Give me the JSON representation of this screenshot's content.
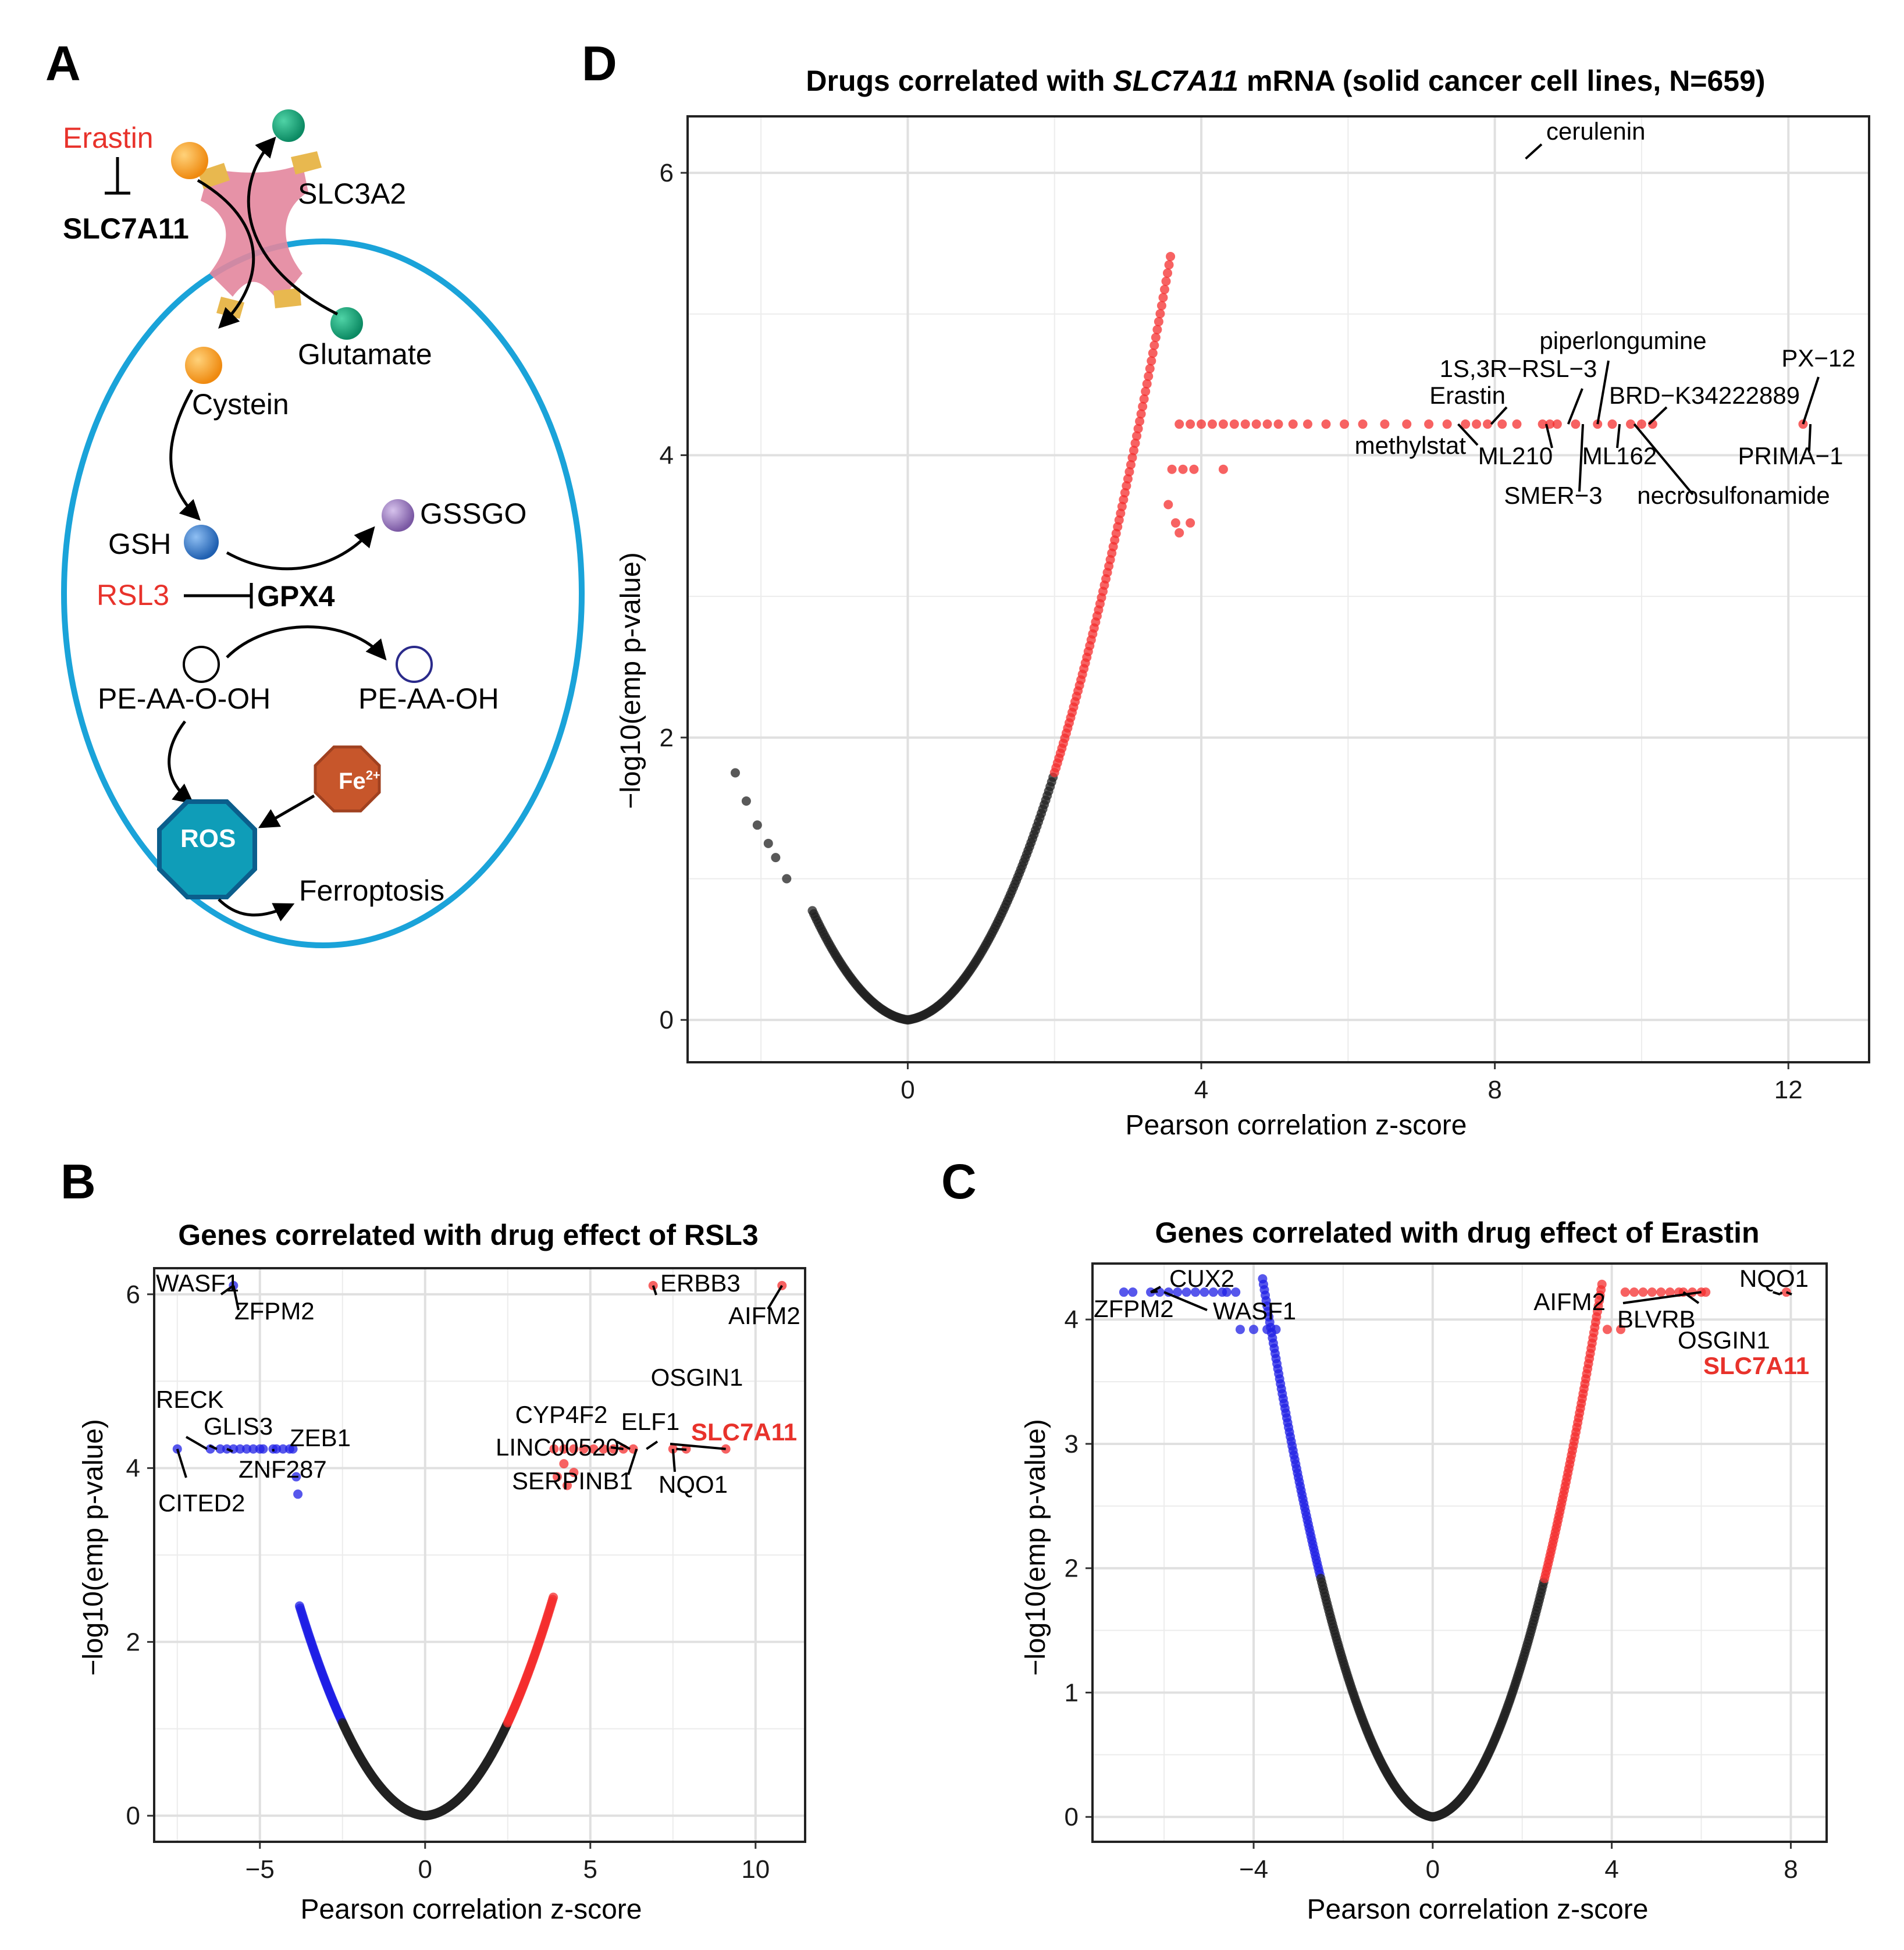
{
  "colors": {
    "up": "#f42d2d",
    "down": "#1f1fe6",
    "ns": "#222222",
    "cell": "#1aa3d9",
    "inhibitor": "#e8322b",
    "cystine": "#f39a1a",
    "glutamate": "#14a37a",
    "gsh": "#2f74c7",
    "gssg": "#8a6bb0",
    "fe": "#c7562b",
    "ros": "#0f8fa8"
  },
  "panels": {
    "A": {
      "letter": "A",
      "labels": {
        "erastin": "Erastin",
        "slc7a11": "SLC7A11",
        "slc3a2": "SLC3A2",
        "glutamate": "Glutamate",
        "cystein": "Cystein",
        "gsh": "GSH",
        "gssgo": "GSSGO",
        "rsl3": "RSL3",
        "gpx4": "GPX4",
        "pe_aa_o_oh": "PE-AA-O-OH",
        "pe_aa_oh": "PE-AA-OH",
        "fe": "Fe",
        "fe_sup": "2+",
        "ros": "ROS",
        "ferroptosis": "Ferroptosis"
      }
    },
    "B": {
      "letter": "B"
    },
    "C": {
      "letter": "C"
    },
    "D": {
      "letter": "D"
    }
  },
  "chart_data": [
    {
      "id": "D",
      "type": "scatter",
      "title_pre": "Drugs correlated with ",
      "title_italic": "SLC7A11",
      "title_post": " mRNA (solid cancer cell lines, N=659)",
      "xlabel": "Pearson correlation z-score",
      "ylabel": "−log10(emp p-value)",
      "xlim": [
        -3.0,
        13.1
      ],
      "ylim": [
        -0.3,
        6.4
      ],
      "xticks": [
        0,
        4,
        8,
        12
      ],
      "yticks": [
        0,
        2,
        4,
        6
      ],
      "xtick_labels": [
        "0",
        "4",
        "8",
        "12"
      ],
      "ytick_labels": [
        "0",
        "2",
        "4",
        "6"
      ],
      "curve": {
        "k": 0.73,
        "neg_min": -1.3,
        "pos_max": 3.6,
        "sig_threshold": 1.85
      },
      "plateau_y": 4.22,
      "extra_points": [
        [
          -2.35,
          1.75
        ],
        [
          -2.2,
          1.55
        ],
        [
          -2.05,
          1.38
        ],
        [
          -1.9,
          1.25
        ],
        [
          -1.8,
          1.15
        ],
        [
          -1.65,
          1.0
        ],
        [
          3.6,
          3.9
        ],
        [
          3.75,
          3.9
        ],
        [
          3.9,
          3.9
        ],
        [
          4.3,
          3.9
        ],
        [
          3.55,
          3.65
        ],
        [
          3.65,
          3.52
        ],
        [
          3.85,
          3.52
        ],
        [
          3.7,
          3.45
        ]
      ],
      "plateau_points": [
        3.7,
        3.85,
        4.0,
        4.15,
        4.3,
        4.45,
        4.6,
        4.75,
        4.9,
        5.05,
        5.25,
        5.45,
        5.7,
        5.95,
        6.2,
        6.5,
        6.8,
        7.1,
        7.35,
        7.6,
        7.75,
        7.9,
        8.1,
        8.3,
        8.65,
        8.75,
        8.85,
        9.1,
        9.4,
        9.6,
        9.85,
        10.0,
        10.15,
        12.2
      ],
      "labelled": [
        {
          "name": "cerulenin",
          "x": 8.42,
          "y": 6.1
        },
        {
          "name": "piperlongumine",
          "x": 9.4,
          "y": 4.22
        },
        {
          "name": "1S,3R−RSL−3",
          "x": 9.0,
          "y": 4.22
        },
        {
          "name": "Erastin",
          "x": 7.95,
          "y": 4.22
        },
        {
          "name": "methylstat",
          "x": 7.5,
          "y": 4.22
        },
        {
          "name": "ML210",
          "x": 8.7,
          "y": 4.22
        },
        {
          "name": "SMER−3",
          "x": 9.2,
          "y": 4.22
        },
        {
          "name": "ML162",
          "x": 9.7,
          "y": 4.22
        },
        {
          "name": "BRD−K34222889",
          "x": 10.1,
          "y": 4.22
        },
        {
          "name": "necrosulfonamide",
          "x": 9.9,
          "y": 4.22
        },
        {
          "name": "PX−12",
          "x": 12.2,
          "y": 4.22
        },
        {
          "name": "PRIMA−1",
          "x": 12.3,
          "y": 4.22
        }
      ]
    },
    {
      "id": "B",
      "type": "scatter",
      "title": "Genes correlated with drug effect of RSL3",
      "xlabel": "Pearson correlation z-score",
      "ylabel": "−log10(emp p-value)",
      "xlim": [
        -8.2,
        11.5
      ],
      "ylim": [
        -0.3,
        6.3
      ],
      "xticks": [
        -5,
        0,
        5,
        10
      ],
      "yticks": [
        0,
        2,
        4,
        6
      ],
      "xtick_labels": [
        "−5",
        "0",
        "5",
        "10"
      ],
      "ytick_labels": [
        "0",
        "2",
        "4",
        "6"
      ],
      "curve": {
        "k": 0.29,
        "neg_min": -3.8,
        "pos_max": 3.9,
        "sig_threshold": 2.0
      },
      "plateau_y": 4.22,
      "extra_points": [
        [
          -7.5,
          4.22
        ],
        [
          -6.5,
          4.22
        ],
        [
          -6.2,
          4.22
        ],
        [
          -5.8,
          4.22
        ],
        [
          -5.4,
          4.22
        ],
        [
          -5.0,
          4.22
        ],
        [
          -4.6,
          4.22
        ],
        [
          -4.3,
          4.22
        ],
        [
          -4.0,
          4.22
        ],
        [
          -3.9,
          3.9
        ],
        [
          -3.85,
          3.7
        ],
        [
          4.0,
          3.9
        ],
        [
          4.3,
          3.8
        ],
        [
          4.5,
          3.95
        ],
        [
          4.2,
          4.05
        ],
        [
          7.5,
          4.22
        ],
        [
          7.9,
          4.22
        ],
        [
          9.1,
          4.22
        ],
        [
          6.9,
          6.1
        ],
        [
          10.8,
          6.1
        ],
        [
          -5.8,
          6.1
        ]
      ],
      "plateau_points": [
        3.9,
        4.2,
        4.5,
        4.8,
        5.1,
        5.4,
        5.7,
        6.0,
        6.3,
        -6.0,
        -5.6,
        -5.2,
        -4.9,
        -4.5,
        -4.1
      ],
      "labelled": [
        {
          "name": "WASF1",
          "x": -5.8,
          "y": 6.1
        },
        {
          "name": "ZFPM2",
          "x": -5.8,
          "y": 6.1
        },
        {
          "name": "ERBB3",
          "x": 6.9,
          "y": 6.1
        },
        {
          "name": "AIFM2",
          "x": 10.8,
          "y": 6.1
        },
        {
          "name": "OSGIN1",
          "x": 7.6,
          "y": 4.22
        },
        {
          "name": "CYP4F2",
          "x": 6.2,
          "y": 4.22
        },
        {
          "name": "ELF1",
          "x": 6.7,
          "y": 4.22
        },
        {
          "name": "SLC7A11",
          "x": 9.1,
          "y": 4.22,
          "highlight": true
        },
        {
          "name": "LINC00520",
          "x": 6.0,
          "y": 4.22
        },
        {
          "name": "SERPINB1",
          "x": 6.4,
          "y": 4.22
        },
        {
          "name": "NQO1",
          "x": 7.5,
          "y": 4.22
        },
        {
          "name": "RECK",
          "x": -6.6,
          "y": 4.22
        },
        {
          "name": "GLIS3",
          "x": -6.3,
          "y": 4.22
        },
        {
          "name": "ZEB1",
          "x": -4.6,
          "y": 4.22
        },
        {
          "name": "ZNF287",
          "x": -6.0,
          "y": 4.22
        },
        {
          "name": "CITED2",
          "x": -7.5,
          "y": 4.22
        }
      ]
    },
    {
      "id": "C",
      "type": "scatter",
      "title": "Genes correlated with drug effect of Erastin",
      "xlabel": "Pearson correlation z-score",
      "ylabel": "−log10(emp p-value)",
      "xlim": [
        -7.6,
        8.8
      ],
      "ylim": [
        -0.2,
        4.45
      ],
      "xticks": [
        -4,
        0,
        4,
        8
      ],
      "yticks": [
        0,
        1,
        2,
        3,
        4
      ],
      "xtick_labels": [
        "−4",
        "0",
        "4",
        "8"
      ],
      "ytick_labels": [
        "0",
        "1",
        "2",
        "3",
        "4"
      ],
      "curve": {
        "k": 0.52,
        "neg_min": -3.8,
        "pos_max": 3.8,
        "sig_threshold": 2.0
      },
      "plateau_y": 4.22,
      "extra_points": [
        [
          -6.9,
          4.22
        ],
        [
          -6.3,
          4.22
        ],
        [
          -5.9,
          4.22
        ],
        [
          -5.5,
          4.22
        ],
        [
          -5.1,
          4.22
        ],
        [
          -4.7,
          4.22
        ],
        [
          -4.4,
          4.22
        ],
        [
          -4.3,
          3.92
        ],
        [
          -4.0,
          3.92
        ],
        [
          -3.7,
          3.92
        ],
        [
          -3.5,
          3.92
        ],
        [
          3.9,
          3.92
        ],
        [
          4.2,
          3.92
        ],
        [
          7.9,
          4.22
        ],
        [
          6.0,
          4.22
        ],
        [
          5.6,
          4.22
        ]
      ],
      "plateau_points": [
        -6.7,
        -6.1,
        -5.7,
        -5.3,
        -4.9,
        -4.6,
        4.3,
        4.5,
        4.7,
        4.9,
        5.1,
        5.3,
        5.5,
        5.8,
        6.1
      ],
      "labelled": [
        {
          "name": "CUX2",
          "x": -6.3,
          "y": 4.22
        },
        {
          "name": "ZFPM2",
          "x": -6.3,
          "y": 4.22
        },
        {
          "name": "WASF1",
          "x": -6.0,
          "y": 4.22
        },
        {
          "name": "AIFM2",
          "x": 6.0,
          "y": 4.22
        },
        {
          "name": "BLVRB",
          "x": 5.6,
          "y": 4.22
        },
        {
          "name": "NQO1",
          "x": 7.8,
          "y": 4.22
        },
        {
          "name": "OSGIN1",
          "x": 7.6,
          "y": 4.22
        },
        {
          "name": "SLC7A11",
          "x": 7.9,
          "y": 4.22,
          "highlight": true
        }
      ]
    }
  ]
}
